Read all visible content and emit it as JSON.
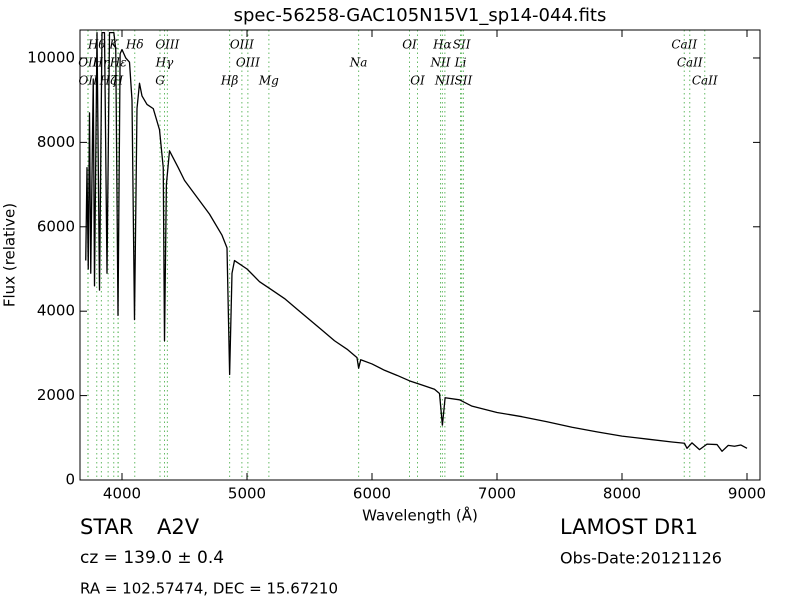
{
  "chart_data": {
    "type": "line",
    "title": "spec-56258-GAC105N15V1_sp14-044.fits",
    "x_label": "Wavelength (Å)",
    "y_label": "Flux (relative)",
    "xlim": [
      3664,
      9104
    ],
    "ylim": [
      0,
      10663
    ],
    "xticks": [
      4000,
      5000,
      6000,
      7000,
      8000,
      9000
    ],
    "yticks": [
      0,
      2000,
      4000,
      6000,
      8000,
      10000
    ],
    "color": "#000000",
    "line_color": "#66bb66",
    "x": [
      3710,
      3720,
      3730,
      3740,
      3750,
      3770,
      3780,
      3800,
      3820,
      3840,
      3860,
      3880,
      3900,
      3935,
      3950,
      3968,
      3985,
      4000,
      4030,
      4060,
      4080,
      4100,
      4120,
      4140,
      4160,
      4200,
      4250,
      4300,
      4330,
      4340,
      4355,
      4380,
      4450,
      4500,
      4600,
      4700,
      4800,
      4840,
      4861,
      4880,
      4900,
      5000,
      5100,
      5200,
      5300,
      5400,
      5500,
      5600,
      5700,
      5800,
      5880,
      5893,
      5910,
      6000,
      6100,
      6200,
      6300,
      6400,
      6500,
      6540,
      6563,
      6585,
      6700,
      6800,
      7000,
      7200,
      7400,
      7600,
      7800,
      8000,
      8200,
      8400,
      8500,
      8520,
      8560,
      8620,
      8680,
      8760,
      8800,
      8850,
      8900,
      8950,
      9000
    ],
    "values": [
      5200,
      7400,
      5000,
      8700,
      4900,
      9500,
      4600,
      10600,
      4500,
      10600,
      10600,
      4900,
      10600,
      10600,
      10200,
      3900,
      10100,
      10200,
      10000,
      9900,
      9000,
      3800,
      8800,
      9400,
      9100,
      8900,
      8800,
      8300,
      7400,
      3300,
      7000,
      7800,
      7400,
      7100,
      6700,
      6300,
      5800,
      5500,
      2500,
      4900,
      5200,
      5000,
      4700,
      4500,
      4300,
      4050,
      3800,
      3550,
      3300,
      3100,
      2900,
      2650,
      2850,
      2750,
      2600,
      2480,
      2350,
      2250,
      2150,
      2050,
      1300,
      1950,
      1900,
      1750,
      1600,
      1500,
      1380,
      1250,
      1140,
      1040,
      970,
      900,
      870,
      750,
      880,
      720,
      850,
      840,
      680,
      820,
      800,
      830,
      750
    ],
    "lines": [
      {
        "label": "OII",
        "wavelength": 3727
      },
      {
        "label": "OII",
        "wavelength": 3729
      },
      {
        "label": "Hθ",
        "wavelength": 3798
      },
      {
        "label": "Hη",
        "wavelength": 3835
      },
      {
        "label": "Hζ",
        "wavelength": 3889
      },
      {
        "label": "K",
        "wavelength": 3934
      },
      {
        "label": "H",
        "wavelength": 3968
      },
      {
        "label": "Hε",
        "wavelength": 3970
      },
      {
        "label": "Hδ",
        "wavelength": 4102
      },
      {
        "label": "G",
        "wavelength": 4304
      },
      {
        "label": "Hγ",
        "wavelength": 4340
      },
      {
        "label": "OIII",
        "wavelength": 4363
      },
      {
        "label": "Hβ",
        "wavelength": 4861
      },
      {
        "label": "OIII",
        "wavelength": 4959
      },
      {
        "label": "OIII",
        "wavelength": 5007
      },
      {
        "label": "Mg",
        "wavelength": 5175
      },
      {
        "label": "Na",
        "wavelength": 5893
      },
      {
        "label": "OI",
        "wavelength": 6300
      },
      {
        "label": "OI",
        "wavelength": 6364
      },
      {
        "label": "NII",
        "wavelength": 6548
      },
      {
        "label": "Hα",
        "wavelength": 6563
      },
      {
        "label": "NII",
        "wavelength": 6583
      },
      {
        "label": "Li",
        "wavelength": 6708
      },
      {
        "label": "SII",
        "wavelength": 6717
      },
      {
        "label": "SII",
        "wavelength": 6731
      },
      {
        "label": "CaII",
        "wavelength": 8498
      },
      {
        "label": "CaII",
        "wavelength": 8542
      },
      {
        "label": "CaII",
        "wavelength": 8662
      }
    ],
    "info": {
      "object": "STAR",
      "class": "A2V",
      "survey": "LAMOST DR1",
      "cz": "cz = 139.0 ± 0.4",
      "date": "Obs-Date:20121126",
      "coords": "RA = 102.57474, DEC = 15.67210"
    }
  }
}
